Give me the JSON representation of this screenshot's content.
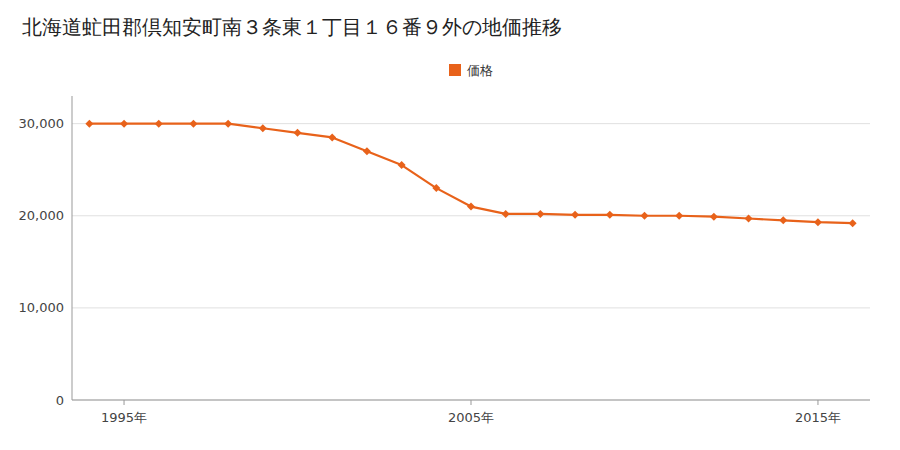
{
  "chart_data": {
    "type": "line",
    "title": "北海道虻田郡倶知安町南３条東１丁目１６番９外の地価推移",
    "x": [
      1994,
      1995,
      1996,
      1997,
      1998,
      1999,
      2000,
      2001,
      2002,
      2003,
      2004,
      2005,
      2006,
      2007,
      2008,
      2009,
      2010,
      2011,
      2012,
      2013,
      2014,
      2015,
      2016
    ],
    "series": [
      {
        "name": "価格",
        "color": "#E8621A",
        "marker": "diamond",
        "values": [
          30000,
          30000,
          30000,
          30000,
          30000,
          29500,
          29000,
          28500,
          27000,
          25500,
          23000,
          21000,
          20200,
          20200,
          20100,
          20100,
          20000,
          20000,
          19900,
          19700,
          19500,
          19300,
          19200
        ]
      }
    ],
    "xlim": [
      1993.5,
      2016.5
    ],
    "xticks": [
      {
        "value": 1995,
        "label": "1995年"
      },
      {
        "value": 2005,
        "label": "2005年"
      },
      {
        "value": 2015,
        "label": "2015年"
      }
    ],
    "ylim": [
      0,
      33000
    ],
    "yticks": [
      0,
      {
        "value": 10000,
        "label": "10,000"
      },
      {
        "value": 20000,
        "label": "20,000"
      },
      {
        "value": 30000,
        "label": "30,000"
      }
    ],
    "grid": true,
    "legend": "top"
  }
}
